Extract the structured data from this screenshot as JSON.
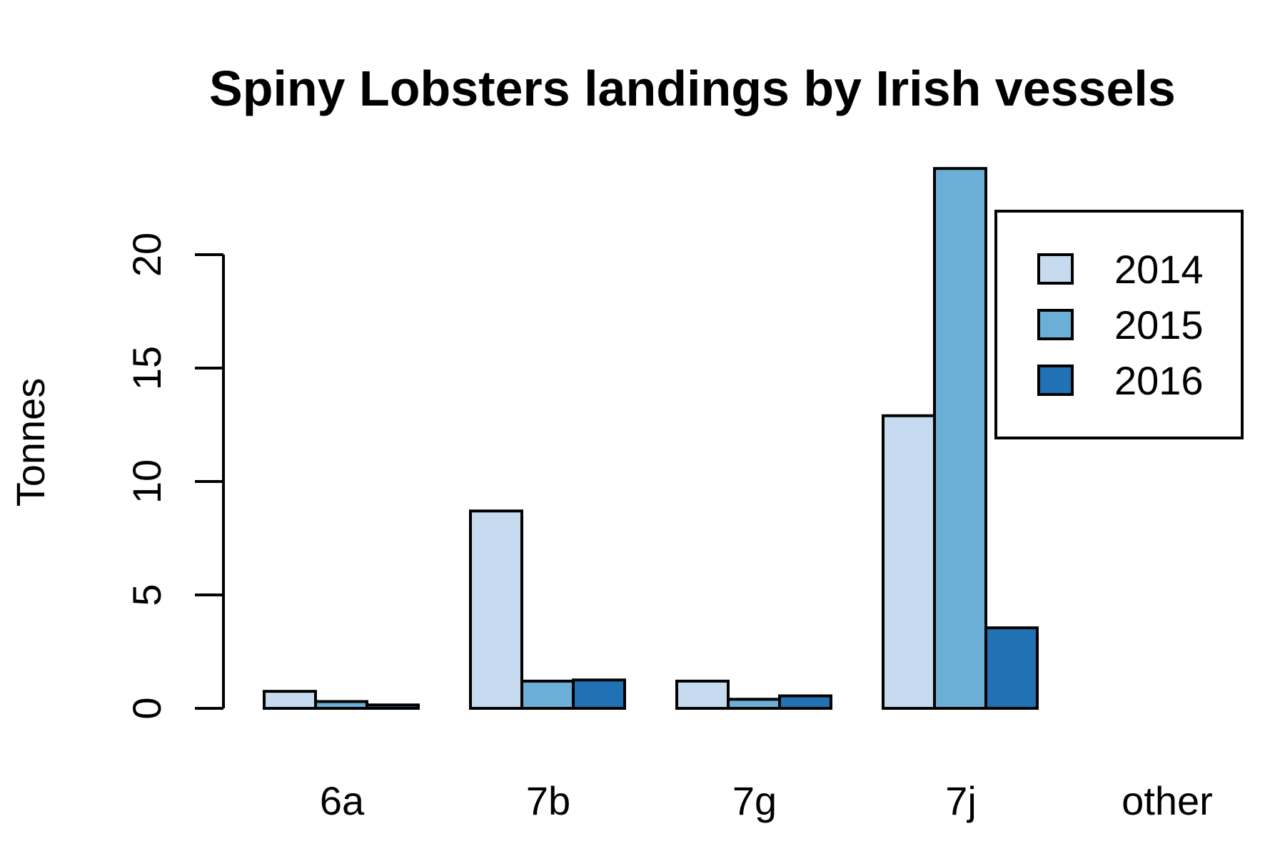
{
  "chart_data": {
    "type": "bar",
    "title": "Spiny Lobsters landings by Irish vessels",
    "xlabel": "",
    "ylabel": "Tonnes",
    "categories": [
      "6a",
      "7b",
      "7g",
      "7j",
      "other"
    ],
    "series": [
      {
        "name": "2014",
        "color": "#c6dbef",
        "values": [
          0.75,
          8.7,
          1.2,
          12.9,
          0.0
        ]
      },
      {
        "name": "2015",
        "color": "#6baed6",
        "values": [
          0.3,
          1.2,
          0.4,
          23.8,
          0.0
        ]
      },
      {
        "name": "2016",
        "color": "#2171b5",
        "values": [
          0.15,
          1.25,
          0.55,
          3.55,
          0.0
        ]
      }
    ],
    "ylim": [
      0,
      24
    ],
    "yticks": [
      0,
      5,
      10,
      15,
      20
    ],
    "legend_position": "top-right",
    "grid": false
  }
}
